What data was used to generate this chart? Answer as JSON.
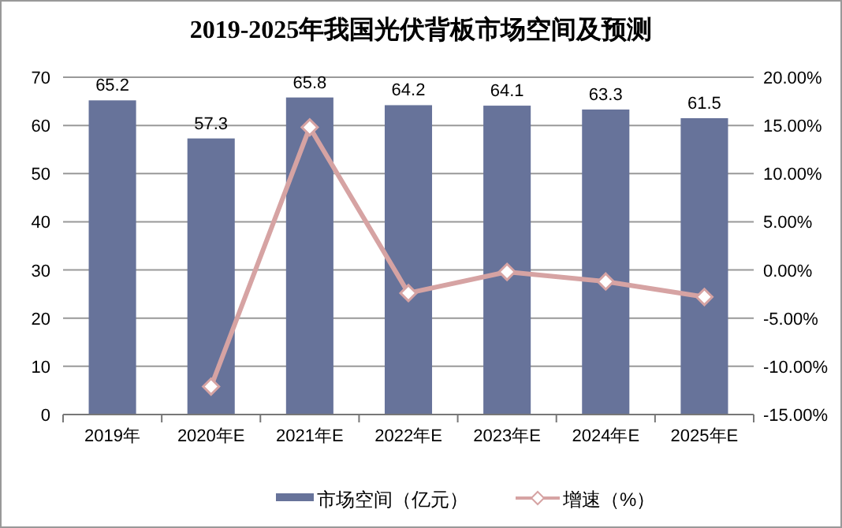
{
  "chart_data": {
    "type": "bar",
    "title": "2019-2025年我国光伏背板市场空间及预测",
    "categories": [
      "2019年",
      "2020年E",
      "2021年E",
      "2022年E",
      "2023年E",
      "2024年E",
      "2025年E"
    ],
    "series": [
      {
        "name": "市场空间（亿元）",
        "color": "#67739a",
        "values": [
          65.2,
          57.3,
          65.8,
          64.2,
          64.1,
          63.3,
          61.5
        ],
        "data_labels": true
      },
      {
        "name": "增速（%）",
        "type": "line",
        "axis": "y2",
        "color": "#d6a3a3",
        "marker": "diamond",
        "values": [
          null,
          -12.1,
          14.8,
          -2.4,
          -0.2,
          -1.2,
          -2.8
        ]
      }
    ],
    "ylim": [
      0,
      70
    ],
    "yticks": [
      0,
      10,
      20,
      30,
      40,
      50,
      60,
      70
    ],
    "y2lim": [
      -15,
      20
    ],
    "y2ticks": [
      {
        "value": -15,
        "label": "-15.00%"
      },
      {
        "value": -10,
        "label": "-10.00%"
      },
      {
        "value": -5,
        "label": "-5.00%"
      },
      {
        "value": 0,
        "label": "0.00%"
      },
      {
        "value": 5,
        "label": "5.00%"
      },
      {
        "value": 10,
        "label": "10.00%"
      },
      {
        "value": 15,
        "label": "15.00%"
      },
      {
        "value": 20,
        "label": "20.00%"
      }
    ],
    "grid": "y",
    "legend": "bottom"
  }
}
